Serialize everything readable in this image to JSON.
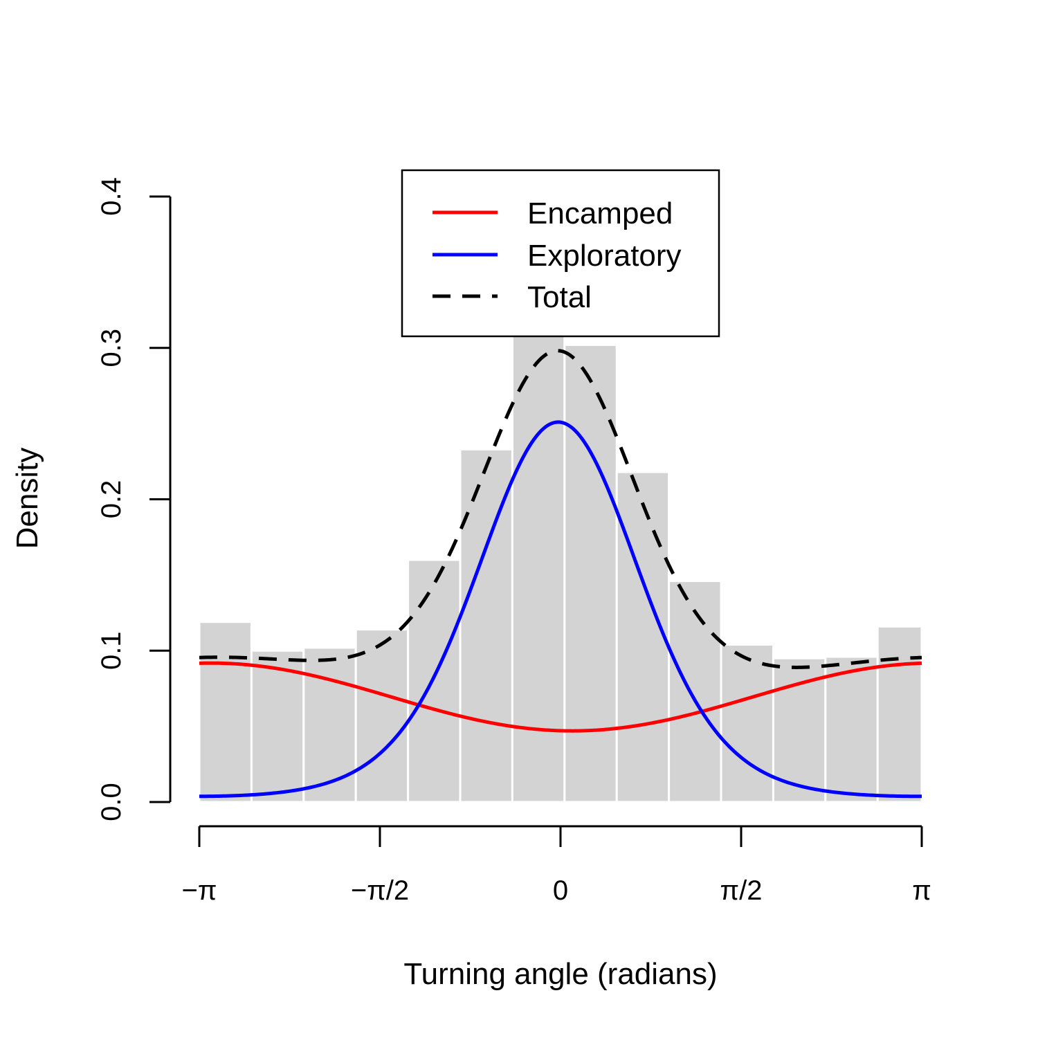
{
  "chart_data": {
    "type": "bar",
    "title": "",
    "xlabel": "Turning angle (radians)",
    "ylabel": "Density",
    "xlim": [
      -3.14159,
      3.14159
    ],
    "ylim": [
      0,
      0.4
    ],
    "x_ticks": [
      {
        "value": -3.14159,
        "label": "−π"
      },
      {
        "value": -1.5708,
        "label": "−π/2"
      },
      {
        "value": 0,
        "label": "0"
      },
      {
        "value": 1.5708,
        "label": "π/2"
      },
      {
        "value": 3.14159,
        "label": "π"
      }
    ],
    "y_ticks": [
      {
        "value": 0.0,
        "label": "0.0"
      },
      {
        "value": 0.1,
        "label": "0.1"
      },
      {
        "value": 0.2,
        "label": "0.2"
      },
      {
        "value": 0.3,
        "label": "0.3"
      },
      {
        "value": 0.4,
        "label": "0.4"
      }
    ],
    "histogram": {
      "color": "#d3d3d3",
      "bin_edges": [
        -3.1416,
        -2.6878,
        -2.234,
        -1.7802,
        -1.3264,
        -0.8726,
        -0.4188,
        0.035,
        0.4888,
        0.9426,
        1.3964,
        1.8502,
        2.304,
        2.7578,
        3.1416
      ],
      "values": [
        0.119,
        0.1,
        0.102,
        0.114,
        0.16,
        0.233,
        0.31,
        0.302,
        0.218,
        0.146,
        0.104,
        0.095,
        0.096,
        0.116
      ]
    },
    "legend": {
      "position": "top",
      "framed": true
    },
    "series": [
      {
        "name": "Encamped",
        "color": "#ff0000",
        "style": "solid",
        "params": {
          "base": 0.047,
          "amp": 0.0224,
          "mu": 0.1
        }
      },
      {
        "name": "Exploratory",
        "color": "#0000ff",
        "style": "solid",
        "params": {
          "kappa": 2.1,
          "mu": -0.02,
          "peak": 0.251
        }
      },
      {
        "name": "Total",
        "color": "#000000",
        "style": "dashed",
        "params": {
          "sum_of": [
            "Encamped",
            "Exploratory"
          ]
        }
      }
    ]
  }
}
